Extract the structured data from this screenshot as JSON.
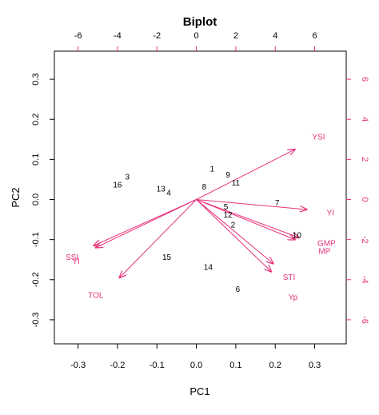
{
  "chart_data": {
    "type": "scatter",
    "title": "Biplot",
    "xlabel": "PC1",
    "ylabel": "PC2",
    "xlim": [
      -0.36,
      0.38
    ],
    "ylim": [
      -0.36,
      0.37
    ],
    "x_ticks": [
      "-0.3",
      "-0.2",
      "-0.1",
      "0.0",
      "0.1",
      "0.2",
      "0.3"
    ],
    "y_ticks": [
      "-0.3",
      "-0.2",
      "-0.1",
      "0.0",
      "0.1",
      "0.2",
      "0.3"
    ],
    "top_ticks": [
      "-6",
      "-4",
      "-2",
      "0",
      "2",
      "4",
      "6"
    ],
    "right_ticks": [
      "-6",
      "-4",
      "-2",
      "0",
      "2",
      "4",
      "6"
    ],
    "secondary_scale": 20,
    "grid": false,
    "colors": {
      "observations": "#000000",
      "loadings": "#e8337c"
    },
    "observations": [
      {
        "label": "1",
        "x": 0.04,
        "y": 0.075
      },
      {
        "label": "2",
        "x": 0.093,
        "y": -0.065
      },
      {
        "label": "3",
        "x": -0.175,
        "y": 0.055
      },
      {
        "label": "4",
        "x": -0.07,
        "y": 0.015
      },
      {
        "label": "5",
        "x": 0.075,
        "y": -0.02
      },
      {
        "label": "6",
        "x": 0.105,
        "y": -0.225
      },
      {
        "label": "7",
        "x": 0.205,
        "y": -0.01
      },
      {
        "label": "8",
        "x": 0.02,
        "y": 0.03
      },
      {
        "label": "9",
        "x": 0.08,
        "y": 0.06
      },
      {
        "label": "10",
        "x": 0.255,
        "y": -0.09
      },
      {
        "label": "11",
        "x": 0.1,
        "y": 0.04
      },
      {
        "label": "12",
        "x": 0.08,
        "y": -0.04
      },
      {
        "label": "13",
        "x": -0.09,
        "y": 0.025
      },
      {
        "label": "14",
        "x": 0.03,
        "y": -0.17
      },
      {
        "label": "15",
        "x": -0.075,
        "y": -0.145
      },
      {
        "label": "16",
        "x": -0.2,
        "y": 0.035
      }
    ],
    "loadings": [
      {
        "label": "YSI",
        "x": 0.25,
        "y": 0.125,
        "lx": 0.31,
        "ly": 0.155
      },
      {
        "label": "YI",
        "x": 0.28,
        "y": -0.025,
        "lx": 0.34,
        "ly": -0.035
      },
      {
        "label": "GMP",
        "x": 0.26,
        "y": -0.095,
        "lx": 0.33,
        "ly": -0.11
      },
      {
        "label": "MP",
        "x": 0.25,
        "y": -0.1,
        "lx": 0.325,
        "ly": -0.13
      },
      {
        "label": "STI",
        "x": 0.195,
        "y": -0.16,
        "lx": 0.235,
        "ly": -0.195
      },
      {
        "label": "Yp",
        "x": 0.19,
        "y": -0.18,
        "lx": 0.245,
        "ly": -0.245
      },
      {
        "label": "TOL",
        "x": -0.195,
        "y": -0.195,
        "lx": -0.255,
        "ly": -0.24
      },
      {
        "label": "SSI",
        "x": -0.26,
        "y": -0.115,
        "lx": -0.315,
        "ly": -0.145
      },
      {
        "label": "YI",
        "x": -0.255,
        "y": -0.12,
        "lx": -0.305,
        "ly": -0.155
      }
    ]
  }
}
